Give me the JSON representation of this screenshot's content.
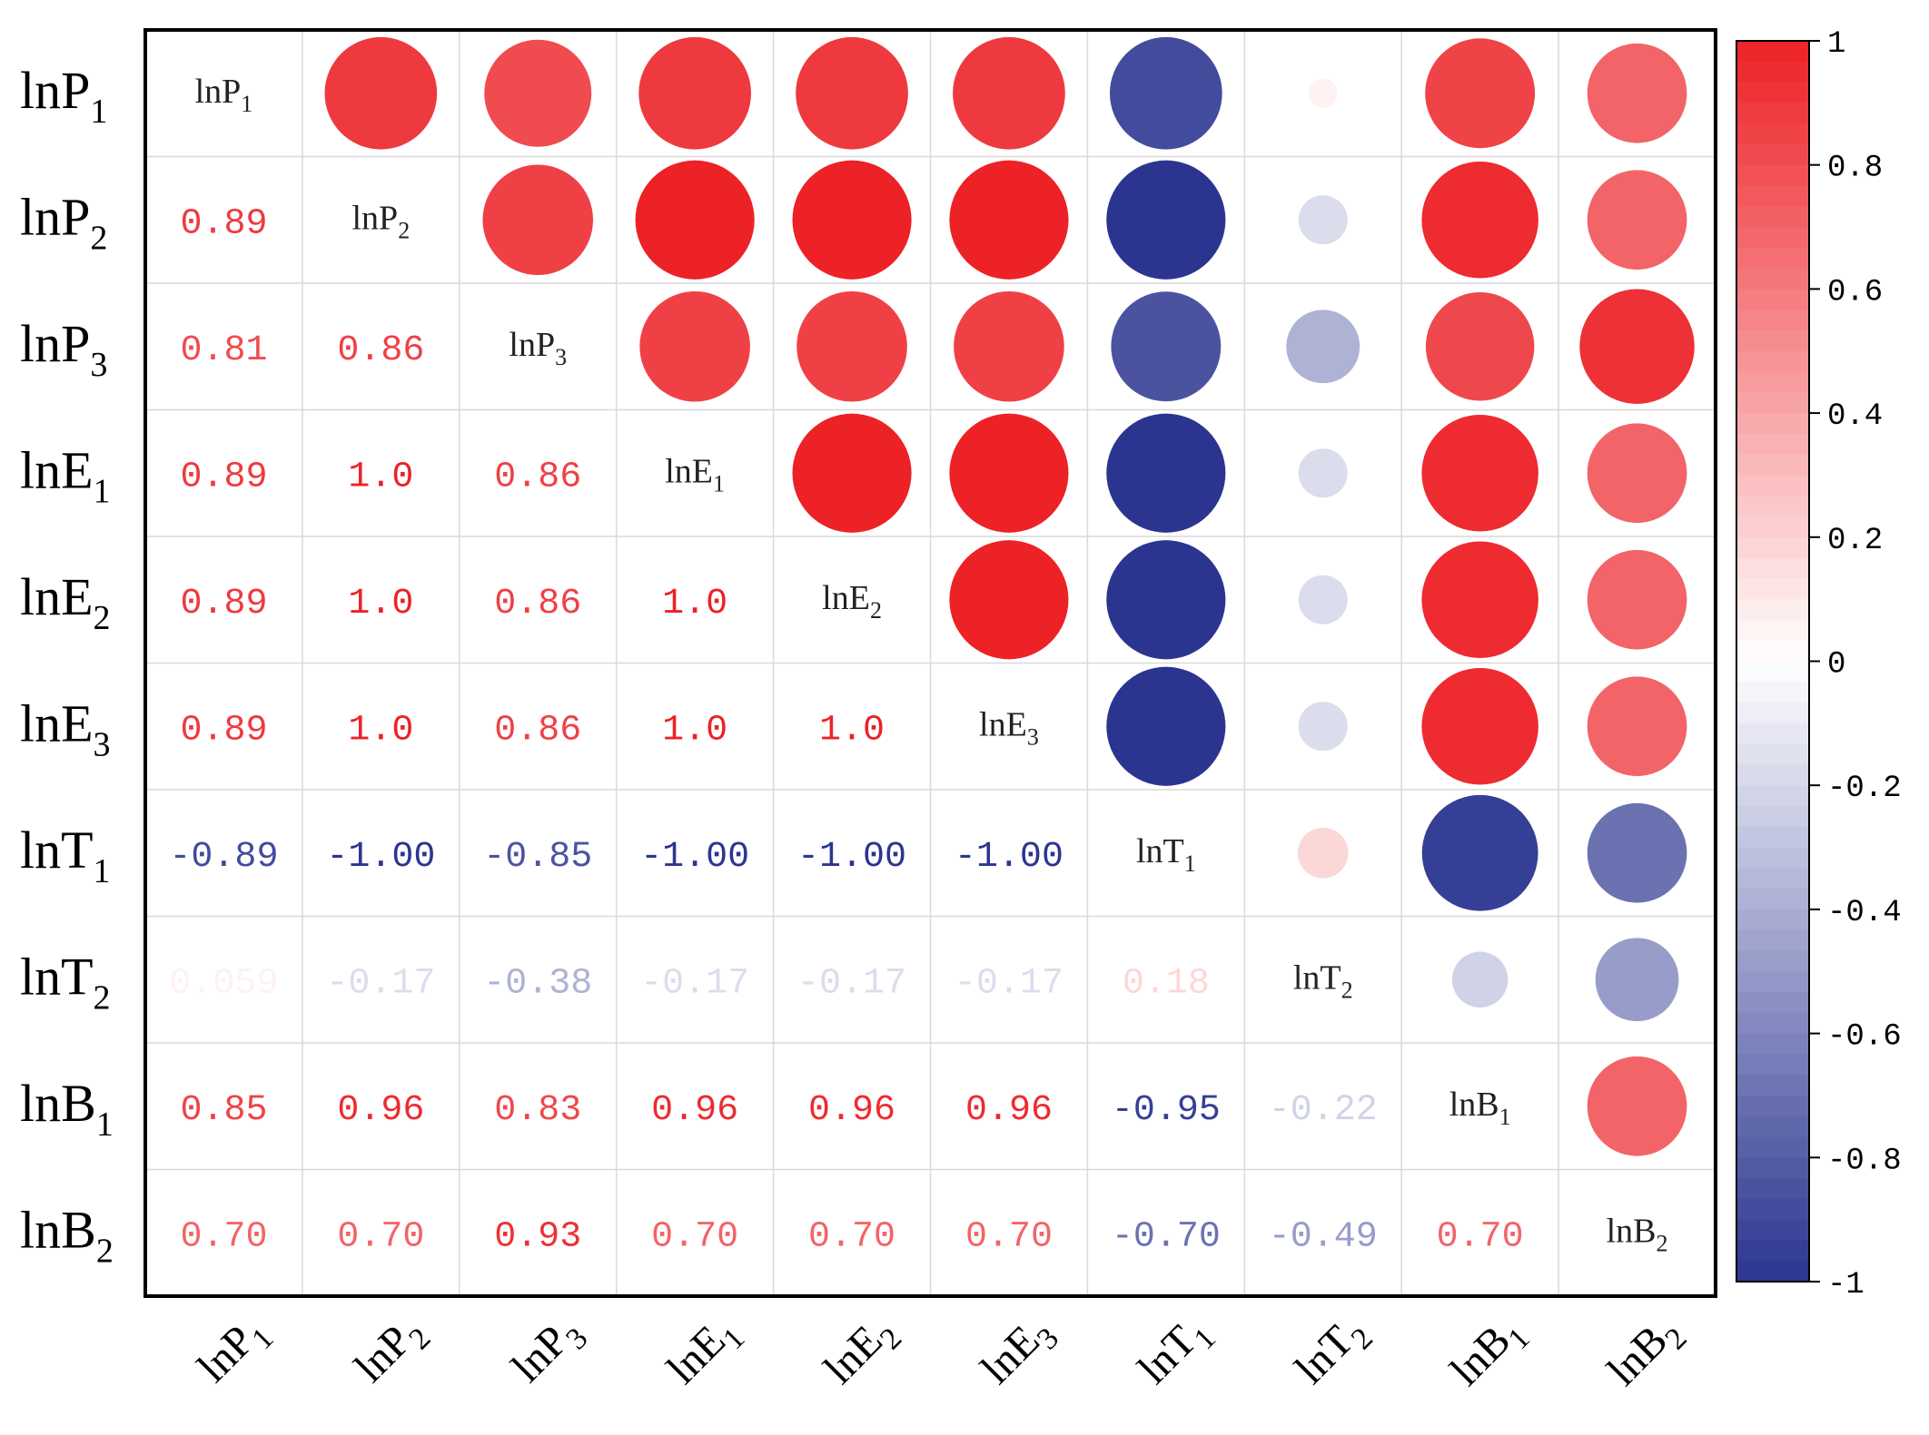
{
  "chart_data": {
    "type": "heatmap",
    "variables": [
      {
        "base": "lnP",
        "sub": "1"
      },
      {
        "base": "lnP",
        "sub": "2"
      },
      {
        "base": "lnP",
        "sub": "3"
      },
      {
        "base": "lnE",
        "sub": "1"
      },
      {
        "base": "lnE",
        "sub": "2"
      },
      {
        "base": "lnE",
        "sub": "3"
      },
      {
        "base": "lnT",
        "sub": "1"
      },
      {
        "base": "lnT",
        "sub": "2"
      },
      {
        "base": "lnB",
        "sub": "1"
      },
      {
        "base": "lnB",
        "sub": "2"
      }
    ],
    "lower_labels": [
      [
        null,
        null,
        null,
        null,
        null,
        null,
        null,
        null,
        null,
        null
      ],
      [
        "0.89",
        null,
        null,
        null,
        null,
        null,
        null,
        null,
        null,
        null
      ],
      [
        "0.81",
        "0.86",
        null,
        null,
        null,
        null,
        null,
        null,
        null,
        null
      ],
      [
        "0.89",
        "1.0",
        "0.86",
        null,
        null,
        null,
        null,
        null,
        null,
        null
      ],
      [
        "0.89",
        "1.0",
        "0.86",
        "1.0",
        null,
        null,
        null,
        null,
        null,
        null
      ],
      [
        "0.89",
        "1.0",
        "0.86",
        "1.0",
        "1.0",
        null,
        null,
        null,
        null,
        null
      ],
      [
        "-0.89",
        "-1.00",
        "-0.85",
        "-1.00",
        "-1.00",
        "-1.00",
        null,
        null,
        null,
        null
      ],
      [
        "0.059",
        "-0.17",
        "-0.38",
        "-0.17",
        "-0.17",
        "-0.17",
        "0.18",
        null,
        null,
        null
      ],
      [
        "0.85",
        "0.96",
        "0.83",
        "0.96",
        "0.96",
        "0.96",
        "-0.95",
        "-0.22",
        null,
        null
      ],
      [
        "0.70",
        "0.70",
        "0.93",
        "0.70",
        "0.70",
        "0.70",
        "-0.70",
        "-0.49",
        "0.70",
        null
      ]
    ],
    "colorbar": {
      "min": -1,
      "max": 1,
      "ticks": [
        "1",
        "0.8",
        "0.6",
        "0.4",
        "0.2",
        "0",
        "-0.2",
        "-0.4",
        "-0.6",
        "-0.8",
        "-1"
      ],
      "colors": {
        "negative": "#2b3590",
        "neutral": "#ffffff",
        "positive": "#ec2227"
      }
    },
    "layout": "upper triangle circles, lower triangle numeric labels, diagonal variable names"
  }
}
